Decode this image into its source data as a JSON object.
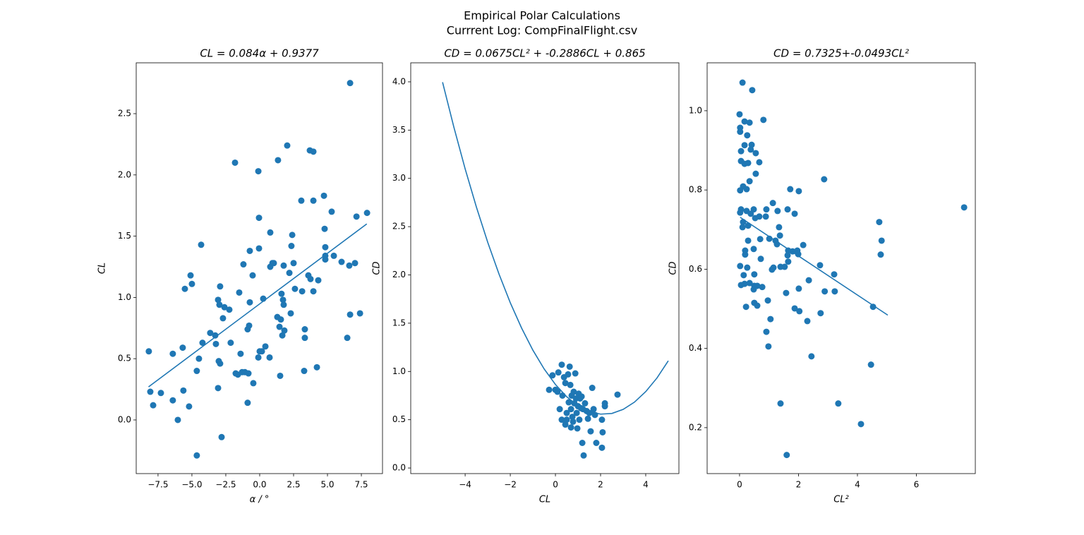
{
  "figure": {
    "title": "Empirical Polar Calculations",
    "subtitle": "Currrent Log: CompFinalFlight.csv"
  },
  "chart_data": [
    {
      "type": "scatter",
      "title": "CL = 0.084α + 0.9377",
      "x_label": "α / °",
      "y_label": "CL",
      "color": "#1f77b4",
      "xlim": [
        -9.11,
        9.06
      ],
      "ylim": [
        -0.438,
        2.915
      ],
      "xticks": [
        {
          "value": -7.5,
          "label": "−7.5"
        },
        {
          "value": -5.0,
          "label": "−5.0"
        },
        {
          "value": -2.5,
          "label": "−2.5"
        },
        {
          "value": 0.0,
          "label": "0.0"
        },
        2.5,
        {
          "value": 5.0,
          "label": "5.0"
        },
        7.5
      ],
      "yticks": [
        {
          "value": 0.0,
          "label": "0.0"
        },
        0.5,
        {
          "value": 1.0,
          "label": "1.0"
        },
        1.5,
        {
          "value": 2.0,
          "label": "2.0"
        },
        2.5
      ],
      "points": {
        "x": [
          -8.18,
          -8.07,
          -7.86,
          -7.29,
          -6.41,
          -6.41,
          -6.04,
          -5.68,
          -5.63,
          -5.52,
          -5.21,
          -5.1,
          -5.0,
          -4.64,
          -4.64,
          -4.48,
          -4.32,
          -4.22,
          -3.65,
          -3.28,
          -3.23,
          -3.07,
          -3.07,
          -3.02,
          -2.97,
          -2.92,
          -2.92,
          -2.81,
          -2.71,
          -2.6,
          -2.24,
          -2.14,
          -1.82,
          -1.77,
          -1.61,
          -1.51,
          -1.41,
          -1.3,
          -1.2,
          -1.09,
          -0.89,
          -0.89,
          -0.83,
          -0.78,
          -0.73,
          -0.73,
          -0.52,
          -0.47,
          -0.1,
          -0.05,
          -0.05,
          -0.1,
          0,
          0.16,
          0.26,
          0.42,
          0.73,
          0.78,
          0.78,
          0.94,
          1.04,
          1.3,
          1.35,
          1.46,
          1.51,
          1.56,
          1.61,
          1.67,
          1.72,
          1.77,
          1.77,
          1.82,
          2.03,
          2.19,
          2.29,
          2.34,
          2.4,
          2.5,
          2.6,
          3.07,
          3.13,
          3.28,
          3.33,
          3.33,
          3.59,
          3.7,
          3.75,
          3.96,
          3.96,
          3.96,
          4.22,
          4.32,
          4.74,
          4.79,
          4.84,
          4.84,
          4.84,
          5.31,
          5.47,
          6.04,
          6.46,
          6.61,
          6.67,
          6.67,
          7.03,
          7.14,
          7.4,
          7.92
        ],
        "y": [
          0.56,
          0.23,
          0.12,
          0.22,
          0.54,
          0.16,
          0.0,
          0.59,
          0.24,
          1.07,
          0.11,
          1.18,
          1.11,
          0.4,
          -0.29,
          0.5,
          1.43,
          0.63,
          0.71,
          0.69,
          0.62,
          0.98,
          0.26,
          0.48,
          0.94,
          1.09,
          0.46,
          -0.14,
          0.83,
          0.92,
          0.9,
          0.63,
          2.1,
          0.38,
          0.37,
          1.04,
          0.54,
          0.39,
          1.27,
          0.39,
          0.14,
          0.74,
          0.38,
          0.77,
          0.96,
          1.38,
          1.18,
          0.3,
          2.03,
          1.65,
          1.4,
          0.51,
          0.56,
          0.56,
          0.99,
          0.6,
          0.51,
          1.53,
          1.25,
          1.28,
          1.28,
          0.84,
          2.12,
          0.76,
          0.36,
          0.82,
          1.03,
          0.69,
          0.98,
          1.26,
          0.94,
          0.73,
          2.24,
          1.2,
          0.87,
          1.42,
          1.51,
          1.28,
          1.07,
          1.79,
          1.05,
          0.4,
          0.74,
          0.67,
          1.18,
          2.2,
          1.15,
          2.19,
          1.05,
          1.79,
          0.43,
          1.14,
          1.83,
          1.56,
          1.41,
          1.31,
          1.34,
          1.7,
          1.34,
          1.29,
          0.67,
          1.26,
          2.75,
          0.86,
          1.28,
          1.66,
          0.87,
          1.69
        ]
      },
      "line": {
        "x": [
          -8.2,
          7.9
        ],
        "y": [
          0.27,
          1.6
        ]
      }
    },
    {
      "type": "scatter",
      "title": "CD = 0.0675CL² + -0.2886CL + 0.865",
      "x_label": "CL",
      "y_label": "CD",
      "color": "#1f77b4",
      "xlim": [
        -6.41,
        5.47
      ],
      "ylim": [
        -0.058,
        4.197
      ],
      "xticks": [
        {
          "value": -4,
          "label": "−4"
        },
        {
          "value": -2,
          "label": "−2"
        },
        0,
        2,
        4
      ],
      "yticks": [
        {
          "value": 0.0,
          "label": "0.0"
        },
        0.5,
        {
          "value": 1.0,
          "label": "1.0"
        },
        1.5,
        {
          "value": 2.0,
          "label": "2.0"
        },
        2.5,
        {
          "value": 3.0,
          "label": "3.0"
        },
        3.5,
        {
          "value": 4.0,
          "label": "4.0"
        }
      ],
      "points": {
        "x": [
          -0.28,
          -0.13,
          0,
          0.13,
          0.19,
          0.28,
          0.31,
          0.38,
          0.44,
          0.5,
          0.5,
          0.56,
          0.59,
          0.63,
          0.66,
          0.69,
          0.72,
          0.75,
          0.78,
          0.81,
          0.84,
          0.88,
          0.91,
          0.94,
          0.97,
          1.0,
          1.03,
          1.06,
          1.09,
          1.13,
          1.16,
          1.19,
          1.22,
          1.25,
          1.31,
          1.38,
          1.44,
          1.5,
          1.56,
          1.63,
          1.69,
          1.75,
          1.81,
          2.06,
          2.06,
          2.09,
          2.19,
          2.19,
          2.75,
          0.28,
          0.44,
          0.09,
          0.69
        ],
        "y": [
          0.81,
          0.96,
          0.81,
          0.99,
          0.61,
          1.07,
          0.75,
          0.94,
          0.88,
          0.57,
          0.5,
          0.97,
          0.68,
          1.05,
          0.86,
          0.61,
          0.75,
          0.53,
          0.48,
          0.79,
          0.67,
          0.98,
          0.72,
          0.57,
          0.41,
          0.64,
          0.77,
          0.5,
          0.72,
          0.62,
          0.74,
          0.26,
          0.61,
          0.13,
          0.67,
          0.59,
          0.51,
          0.57,
          0.38,
          0.83,
          0.61,
          0.55,
          0.26,
          0.5,
          0.21,
          0.37,
          0.67,
          0.64,
          0.76,
          0.5,
          0.45,
          0.79,
          0.42
        ]
      },
      "line": {
        "x": [
          -5,
          -4.5,
          -4,
          -3.5,
          -3,
          -2.5,
          -2,
          -1.5,
          -1,
          -0.5,
          0,
          0.5,
          1,
          1.5,
          2,
          2.5,
          3,
          3.5,
          4,
          4.5,
          5
        ],
        "y": [
          3.996,
          3.531,
          3.099,
          2.702,
          2.338,
          2.009,
          1.712,
          1.45,
          1.221,
          1.026,
          0.865,
          0.738,
          0.644,
          0.584,
          0.558,
          0.565,
          0.607,
          0.682,
          0.791,
          0.933,
          1.11
        ]
      }
    },
    {
      "type": "scatter",
      "title": "CD = 0.7325+-0.0493CL²",
      "x_label": "CL²",
      "y_label": "CD",
      "color": "#1f77b4",
      "xlim": [
        -1.1,
        8.0
      ],
      "ylim": [
        0.084,
        1.121
      ],
      "xticks": [
        0,
        2,
        4,
        6
      ],
      "yticks": [
        0.2,
        0.4,
        0.6,
        0.8,
        {
          "value": 1.0,
          "label": "1.0"
        }
      ],
      "points": {
        "x": [
          0.1,
          0.43,
          0,
          0.02,
          0.02,
          0.17,
          0.34,
          0.81,
          0.26,
          0.17,
          0.41,
          0.05,
          0.38,
          0.55,
          0.05,
          0.17,
          0.29,
          0.67,
          0.55,
          0.34,
          0.12,
          0.02,
          0.24,
          2.87,
          1.72,
          2.01,
          0.05,
          0.02,
          0.48,
          0.91,
          1.63,
          0.24,
          0.38,
          0.67,
          0.89,
          0.53,
          1.13,
          1.29,
          1.87,
          0.12,
          0.29,
          0.1,
          1.34,
          4.74,
          1.37,
          0.29,
          0.7,
          1.01,
          1.22,
          1.27,
          2.16,
          4.82,
          0.48,
          0.19,
          1.65,
          1.8,
          1.96,
          0.19,
          1.63,
          1.99,
          4.79,
          0.02,
          0.72,
          1.65,
          0.26,
          1.39,
          1.53,
          1.1,
          1.15,
          2.73,
          0.14,
          0.5,
          3.21,
          2.35,
          0.17,
          0.05,
          0.34,
          0.5,
          0.6,
          0.77,
          0.48,
          2.01,
          2.89,
          3.23,
          1.58,
          0.96,
          0.5,
          0.6,
          0.22,
          4.53,
          1.87,
          2.03,
          2.75,
          1.05,
          2.3,
          0.91,
          0.98,
          2.44,
          4.46,
          1.39,
          3.35,
          4.12,
          1.6,
          7.62
        ],
        "y": [
          1.071,
          1.052,
          0.991,
          0.957,
          0.947,
          0.973,
          0.97,
          0.977,
          0.938,
          0.913,
          0.914,
          0.898,
          0.902,
          0.893,
          0.873,
          0.866,
          0.868,
          0.87,
          0.841,
          0.822,
          0.809,
          0.799,
          0.802,
          0.827,
          0.802,
          0.797,
          0.751,
          0.743,
          0.751,
          0.751,
          0.751,
          0.747,
          0.74,
          0.733,
          0.733,
          0.729,
          0.767,
          0.747,
          0.74,
          0.719,
          0.71,
          0.706,
          0.706,
          0.719,
          0.685,
          0.672,
          0.676,
          0.677,
          0.672,
          0.663,
          0.661,
          0.672,
          0.651,
          0.647,
          0.647,
          0.645,
          0.647,
          0.637,
          0.635,
          0.638,
          0.637,
          0.608,
          0.626,
          0.619,
          0.604,
          0.606,
          0.606,
          0.599,
          0.604,
          0.61,
          0.585,
          0.587,
          0.587,
          0.572,
          0.563,
          0.56,
          0.565,
          0.558,
          0.558,
          0.555,
          0.549,
          0.551,
          0.544,
          0.544,
          0.54,
          0.521,
          0.515,
          0.508,
          0.505,
          0.505,
          0.501,
          0.494,
          0.489,
          0.474,
          0.469,
          0.442,
          0.405,
          0.38,
          0.359,
          0.261,
          0.261,
          0.209,
          0.131,
          0.756
        ]
      },
      "line": {
        "x": [
          0.02,
          5.03
        ],
        "y": [
          0.731,
          0.484
        ]
      }
    }
  ]
}
